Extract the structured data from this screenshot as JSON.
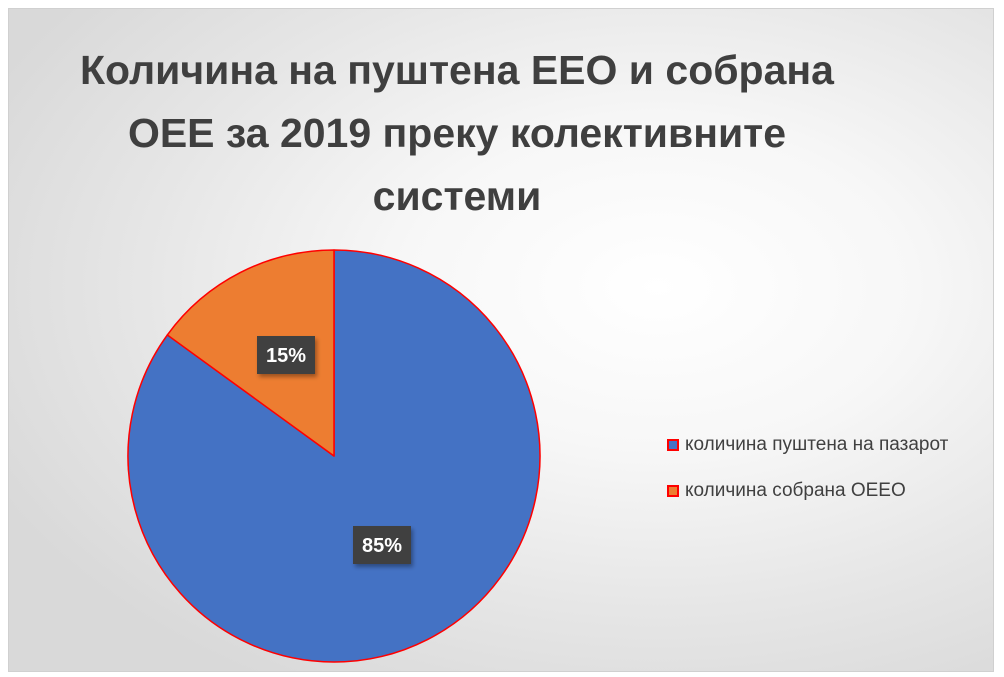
{
  "chart_data": {
    "type": "pie",
    "title": "Количина на пуштена ЕЕО и собрана ОЕЕ за 2019 преку колективните системи",
    "categories": [
      "количина пуштена на пазарот",
      "количина собрана ОЕЕО"
    ],
    "values": [
      85,
      15
    ],
    "data_labels": [
      "85%",
      "15%"
    ],
    "colors": [
      "#4472C4",
      "#ED7D31"
    ],
    "slice_border_color": "#FF0000",
    "label_box_color": "#404040",
    "label_text_color": "#FFFFFF",
    "legend_position": "right"
  }
}
